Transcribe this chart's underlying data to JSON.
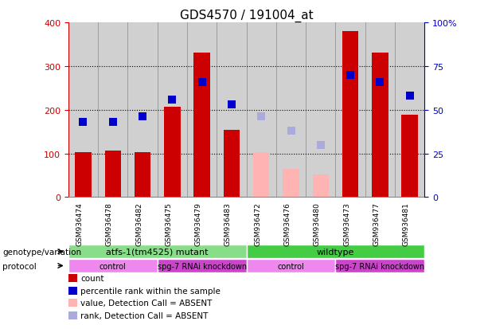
{
  "title": "GDS4570 / 191004_at",
  "samples": [
    "GSM936474",
    "GSM936478",
    "GSM936482",
    "GSM936475",
    "GSM936479",
    "GSM936483",
    "GSM936472",
    "GSM936476",
    "GSM936480",
    "GSM936473",
    "GSM936477",
    "GSM936481"
  ],
  "count_values": [
    103,
    106,
    103,
    207,
    330,
    153,
    null,
    null,
    null,
    380,
    330,
    188
  ],
  "count_absent": [
    null,
    null,
    null,
    null,
    null,
    null,
    103,
    65,
    52,
    null,
    null,
    null
  ],
  "rank_values": [
    43,
    43,
    46,
    56,
    66,
    53,
    null,
    null,
    null,
    70,
    66,
    58
  ],
  "rank_absent": [
    null,
    null,
    null,
    null,
    null,
    null,
    46,
    38,
    30,
    null,
    null,
    null
  ],
  "bar_color_present": "#cc0000",
  "bar_color_absent": "#ffb3b3",
  "dot_color_present": "#0000cc",
  "dot_color_absent": "#aaaadd",
  "ylim_left": [
    0,
    400
  ],
  "ylim_right": [
    0,
    100
  ],
  "yticks_left": [
    0,
    100,
    200,
    300,
    400
  ],
  "yticks_right": [
    0,
    25,
    50,
    75,
    100
  ],
  "ytick_labels_right": [
    "0",
    "25",
    "50",
    "75",
    "100%"
  ],
  "grid_lines": [
    100,
    200,
    300
  ],
  "genotype_groups": [
    {
      "label": "atfs-1(tm4525) mutant",
      "start": 0,
      "end": 6,
      "color": "#88dd88"
    },
    {
      "label": "wildtype",
      "start": 6,
      "end": 12,
      "color": "#44cc44"
    }
  ],
  "protocol_groups": [
    {
      "label": "control",
      "start": 0,
      "end": 3,
      "color": "#ee88ee"
    },
    {
      "label": "spg-7 RNAi knockdown",
      "start": 3,
      "end": 6,
      "color": "#cc44cc"
    },
    {
      "label": "control",
      "start": 6,
      "end": 9,
      "color": "#ee88ee"
    },
    {
      "label": "spg-7 RNAi knockdown",
      "start": 9,
      "end": 12,
      "color": "#cc44cc"
    }
  ],
  "row_labels": [
    "genotype/variation",
    "protocol"
  ],
  "legend_items": [
    {
      "label": "count",
      "color": "#cc0000"
    },
    {
      "label": "percentile rank within the sample",
      "color": "#0000cc"
    },
    {
      "label": "value, Detection Call = ABSENT",
      "color": "#ffb3b3"
    },
    {
      "label": "rank, Detection Call = ABSENT",
      "color": "#aaaadd"
    }
  ],
  "bar_width": 0.55,
  "dot_size": 60,
  "background_color": "#ffffff",
  "title_fontsize": 11,
  "axis_color_left": "#cc0000",
  "axis_color_right": "#0000cc",
  "sample_bg_color": "#d0d0d0",
  "sample_line_color": "#888888"
}
